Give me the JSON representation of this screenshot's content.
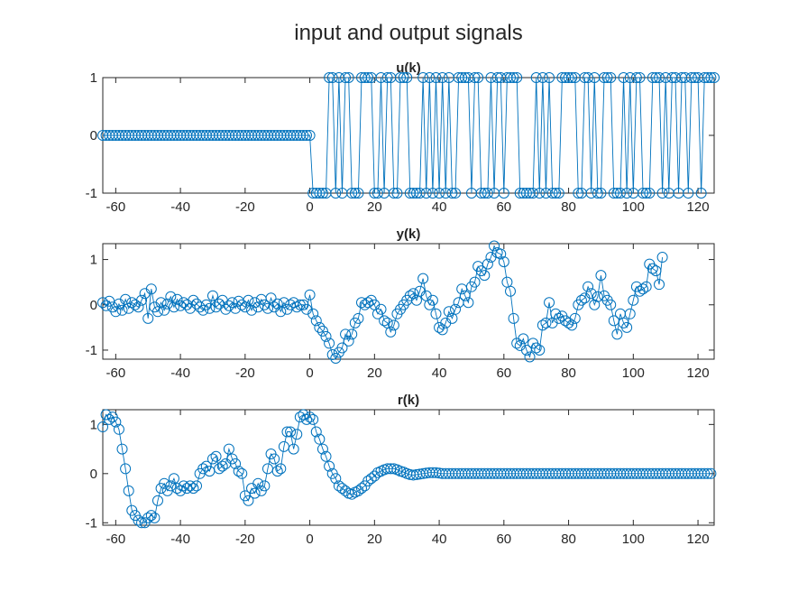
{
  "figure": {
    "title": "input and output signals",
    "series_color": "#0072BD"
  },
  "chart_data": [
    {
      "type": "line",
      "title": "u(k)",
      "xlabel": "",
      "ylabel": "",
      "xlim": [
        -64,
        125
      ],
      "ylim": [
        -1,
        1
      ],
      "xticks": [
        -60,
        -40,
        -20,
        0,
        20,
        40,
        60,
        80,
        100,
        120
      ],
      "xtick_labels": [
        "-60",
        "-40",
        "-20",
        "0",
        "20",
        "40",
        "60",
        "80",
        "100",
        "120"
      ],
      "yticks": [
        1,
        0,
        -1
      ],
      "ytick_labels": [
        "1",
        "0",
        "-1"
      ],
      "grid": false,
      "marker": "circle",
      "x_start": -64,
      "x_step": 1,
      "values": [
        0,
        0,
        0,
        0,
        0,
        0,
        0,
        0,
        0,
        0,
        0,
        0,
        0,
        0,
        0,
        0,
        0,
        0,
        0,
        0,
        0,
        0,
        0,
        0,
        0,
        0,
        0,
        0,
        0,
        0,
        0,
        0,
        0,
        0,
        0,
        0,
        0,
        0,
        0,
        0,
        0,
        0,
        0,
        0,
        0,
        0,
        0,
        0,
        0,
        0,
        0,
        0,
        0,
        0,
        0,
        0,
        0,
        0,
        0,
        0,
        0,
        0,
        0,
        0,
        0,
        -1,
        -1,
        -1,
        -1,
        -1,
        1,
        1,
        -1,
        1,
        -1,
        1,
        1,
        -1,
        -1,
        -1,
        1,
        1,
        1,
        1,
        -1,
        -1,
        1,
        -1,
        1,
        1,
        -1,
        -1,
        1,
        1,
        1,
        -1,
        -1,
        -1,
        -1,
        1,
        -1,
        1,
        -1,
        1,
        -1,
        1,
        -1,
        1,
        -1,
        -1,
        1,
        1,
        1,
        1,
        -1,
        1,
        1,
        -1,
        -1,
        -1,
        1,
        -1,
        1,
        1,
        -1,
        1,
        1,
        1,
        1,
        -1,
        -1,
        -1,
        -1,
        -1,
        1,
        -1,
        1,
        -1,
        1,
        -1,
        -1,
        -1,
        1,
        1,
        1,
        1,
        1,
        -1,
        -1,
        1,
        1,
        -1,
        1,
        -1,
        -1,
        1,
        1,
        1,
        -1,
        -1,
        -1,
        1,
        -1,
        1,
        -1,
        1,
        1,
        -1,
        -1,
        -1,
        1,
        1,
        1,
        -1,
        1,
        -1,
        1,
        1,
        -1,
        1,
        1,
        -1,
        1,
        1,
        1,
        -1,
        1,
        1,
        1,
        1
      ]
    },
    {
      "type": "line",
      "title": "y(k)",
      "xlabel": "",
      "ylabel": "",
      "xlim": [
        -64,
        125
      ],
      "ylim": [
        -1.2,
        1.35
      ],
      "xticks": [
        -60,
        -40,
        -20,
        0,
        20,
        40,
        60,
        80,
        100,
        120
      ],
      "xtick_labels": [
        "-60",
        "-40",
        "-20",
        "0",
        "20",
        "40",
        "60",
        "80",
        "100",
        "120"
      ],
      "yticks": [
        1,
        0,
        -1
      ],
      "ytick_labels": [
        "1",
        "0",
        "-1"
      ],
      "grid": false,
      "marker": "circle",
      "x_start": -64,
      "x_step": 1,
      "values": [
        0.05,
        -0.02,
        0.08,
        -0.05,
        -0.15,
        0.02,
        -0.12,
        0.12,
        -0.08,
        0.05,
        0.0,
        -0.05,
        0.1,
        0.25,
        -0.3,
        0.35,
        -0.05,
        -0.15,
        0.05,
        -0.12,
        0.02,
        0.18,
        -0.05,
        0.12,
        -0.02,
        0.05,
        0.0,
        -0.08,
        0.1,
        0.02,
        -0.05,
        -0.12,
        0.0,
        -0.08,
        0.2,
        -0.05,
        0.02,
        0.1,
        -0.1,
        -0.02,
        0.05,
        -0.08,
        0.08,
        0.0,
        -0.05,
        0.1,
        -0.12,
        0.05,
        -0.05,
        0.12,
        0.0,
        -0.08,
        0.15,
        -0.05,
        0.02,
        -0.15,
        0.05,
        -0.1,
        0.0,
        0.05,
        -0.05,
        0.0,
        0.0,
        -0.1,
        0.22,
        -0.2,
        -0.35,
        -0.5,
        -0.58,
        -0.7,
        -0.85,
        -1.1,
        -1.18,
        -1.05,
        -0.95,
        -0.65,
        -0.8,
        -0.65,
        -0.4,
        -0.3,
        0.05,
        0.0,
        0.05,
        0.1,
        0.0,
        -0.2,
        -0.1,
        -0.35,
        -0.4,
        -0.6,
        -0.45,
        -0.2,
        -0.1,
        0.0,
        0.1,
        0.2,
        0.25,
        0.1,
        0.3,
        0.58,
        0.2,
        0.0,
        0.1,
        -0.2,
        -0.5,
        -0.55,
        -0.4,
        -0.15,
        -0.3,
        -0.1,
        0.05,
        0.35,
        0.2,
        0.05,
        0.4,
        0.5,
        0.85,
        0.75,
        0.65,
        0.9,
        1.05,
        1.3,
        1.15,
        1.12,
        0.95,
        0.5,
        0.3,
        -0.3,
        -0.85,
        -0.9,
        -0.75,
        -1.0,
        -1.15,
        -0.85,
        -0.95,
        -1.0,
        -0.45,
        -0.4,
        0.05,
        -0.4,
        -0.2,
        -0.3,
        -0.25,
        -0.35,
        -0.4,
        -0.45,
        -0.3,
        0.0,
        0.1,
        0.15,
        0.4,
        0.25,
        0.0,
        0.18,
        0.65,
        0.2,
        0.1,
        0.0,
        -0.35,
        -0.65,
        -0.2,
        -0.4,
        -0.5,
        -0.2,
        0.1,
        0.4,
        0.3,
        0.35,
        0.4,
        0.9,
        0.8,
        0.75,
        0.45,
        1.05
      ]
    },
    {
      "type": "line",
      "title": "r(k)",
      "xlabel": "",
      "ylabel": "",
      "xlim": [
        -64,
        125
      ],
      "ylim": [
        -1.05,
        1.3
      ],
      "xticks": [
        -60,
        -40,
        -20,
        0,
        20,
        40,
        60,
        80,
        100,
        120
      ],
      "xtick_labels": [
        "-60",
        "-40",
        "-20",
        "0",
        "20",
        "40",
        "60",
        "80",
        "100",
        "120"
      ],
      "yticks": [
        1,
        0,
        -1
      ],
      "ytick_labels": [
        "1",
        "0",
        "-1"
      ],
      "grid": false,
      "marker": "circle",
      "x_start": -64,
      "x_step": 1,
      "values": [
        0.95,
        1.2,
        1.1,
        1.15,
        1.05,
        0.9,
        0.5,
        0.1,
        -0.35,
        -0.75,
        -0.85,
        -0.95,
        -1.0,
        -1.0,
        -0.9,
        -0.85,
        -0.9,
        -0.55,
        -0.3,
        -0.2,
        -0.35,
        -0.25,
        -0.1,
        -0.3,
        -0.35,
        -0.25,
        -0.3,
        -0.25,
        -0.3,
        -0.25,
        0.0,
        0.1,
        0.15,
        0.05,
        0.3,
        0.35,
        0.1,
        0.15,
        0.2,
        0.5,
        0.3,
        0.2,
        0.05,
        0.0,
        -0.45,
        -0.55,
        -0.3,
        -0.4,
        -0.2,
        -0.35,
        -0.25,
        0.1,
        0.4,
        0.3,
        0.05,
        0.1,
        0.55,
        0.85,
        0.85,
        0.5,
        0.8,
        1.15,
        1.2,
        1.1,
        1.15,
        1.1,
        0.85,
        0.7,
        0.5,
        0.35,
        0.15,
        0.0,
        -0.1,
        -0.25,
        -0.3,
        -0.35,
        -0.4,
        -0.42,
        -0.38,
        -0.35,
        -0.3,
        -0.25,
        -0.15,
        -0.1,
        -0.05,
        0.02,
        0.05,
        0.08,
        0.1,
        0.1,
        0.1,
        0.08,
        0.05,
        0.03,
        0.0,
        -0.02,
        -0.03,
        -0.02,
        -0.01,
        0.0,
        0.01,
        0.02,
        0.02,
        0.02,
        0.01,
        0.0,
        0.0,
        0.0,
        0.0,
        0.0,
        0.0,
        0.0,
        0.0,
        0.0,
        0.0,
        0.0,
        0.0,
        0.0,
        0.0,
        0.0,
        0.0,
        0.0,
        0.0,
        0.0,
        0.0,
        0.0,
        0.0,
        0.0,
        0.0,
        0.0,
        0.0,
        0.0,
        0.0,
        0.0,
        0.0,
        0.0,
        0.0,
        0.0,
        0.0,
        0.0,
        0.0,
        0.0,
        0.0,
        0.0,
        0.0,
        0.0,
        0.0,
        0.0,
        0.0,
        0.0,
        0.0,
        0.0,
        0.0,
        0.0,
        0.0,
        0.0,
        0.0,
        0.0,
        0.0,
        0.0,
        0.0,
        0.0,
        0.0,
        0.0,
        0.0,
        0.0,
        0.0,
        0.0,
        0.0,
        0.0,
        0.0,
        0.0,
        0.0,
        0.0,
        0.0,
        0.0,
        0.0,
        0.0,
        0.0,
        0.0,
        0.0,
        0.0,
        0.0,
        0.0,
        0.0,
        0.0,
        0.0,
        0.0,
        0.0
      ]
    }
  ]
}
